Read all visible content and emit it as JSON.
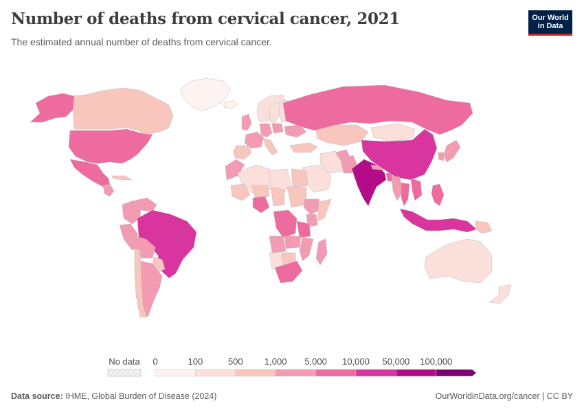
{
  "title": "Number of deaths from cervical cancer, 2021",
  "subtitle": "The estimated annual number of deaths from cervical cancer.",
  "logo": {
    "line1": "Our World",
    "line2": "in Data"
  },
  "legend": {
    "no_data_label": "No data",
    "ticks": [
      "0",
      "100",
      "500",
      "1,000",
      "5,000",
      "10,000",
      "50,000",
      "100,000"
    ],
    "bin_colors": [
      "#fdf3f1",
      "#fbdfdb",
      "#f8c6bd",
      "#f29bb2",
      "#ee6b9f",
      "#d8359e",
      "#b40b89",
      "#7a016f"
    ]
  },
  "footer": {
    "source_label": "Data source:",
    "source_text": "IHME, Global Burden of Disease (2024)",
    "link_text": "OurWorldinData.org/cancer",
    "license": "CC BY"
  },
  "colors": {
    "border": "#bdbdbd",
    "water": "#ffffff",
    "no_data": "#eeeeee"
  },
  "chart_data": {
    "type": "choropleth",
    "title": "Number of deaths from cervical cancer, 2021",
    "subtitle": "The estimated annual number of deaths from cervical cancer.",
    "bins": [
      0,
      100,
      500,
      1000,
      5000,
      10000,
      50000,
      100000
    ],
    "regions": [
      {
        "name": "Canada",
        "bin": 2
      },
      {
        "name": "Greenland",
        "bin": 0
      },
      {
        "name": "Alaska (United States)",
        "bin": 4
      },
      {
        "name": "United States",
        "bin": 4
      },
      {
        "name": "Mexico",
        "bin": 4
      },
      {
        "name": "Guatemala",
        "bin": 3
      },
      {
        "name": "Cuba",
        "bin": 2
      },
      {
        "name": "Colombia",
        "bin": 3
      },
      {
        "name": "Venezuela",
        "bin": 3
      },
      {
        "name": "Peru",
        "bin": 3
      },
      {
        "name": "Brazil",
        "bin": 5
      },
      {
        "name": "Bolivia",
        "bin": 3
      },
      {
        "name": "Paraguay",
        "bin": 2
      },
      {
        "name": "Argentina",
        "bin": 3
      },
      {
        "name": "Chile",
        "bin": 2
      },
      {
        "name": "Iceland",
        "bin": 0
      },
      {
        "name": "Norway",
        "bin": 1
      },
      {
        "name": "Sweden",
        "bin": 1
      },
      {
        "name": "Finland",
        "bin": 1
      },
      {
        "name": "United Kingdom",
        "bin": 3
      },
      {
        "name": "France",
        "bin": 3
      },
      {
        "name": "Spain",
        "bin": 2
      },
      {
        "name": "Germany",
        "bin": 3
      },
      {
        "name": "Poland",
        "bin": 3
      },
      {
        "name": "Ukraine",
        "bin": 3
      },
      {
        "name": "Italy",
        "bin": 2
      },
      {
        "name": "Russia",
        "bin": 4
      },
      {
        "name": "Kazakhstan",
        "bin": 2
      },
      {
        "name": "Turkey",
        "bin": 2
      },
      {
        "name": "Iran",
        "bin": 1
      },
      {
        "name": "Saudi Arabia",
        "bin": 1
      },
      {
        "name": "Pakistan",
        "bin": 3
      },
      {
        "name": "Afghanistan",
        "bin": 3
      },
      {
        "name": "India",
        "bin": 6
      },
      {
        "name": "Bangladesh",
        "bin": 4
      },
      {
        "name": "Nepal",
        "bin": 3
      },
      {
        "name": "Mongolia",
        "bin": 1
      },
      {
        "name": "China",
        "bin": 5
      },
      {
        "name": "Japan",
        "bin": 3
      },
      {
        "name": "South Korea",
        "bin": 3
      },
      {
        "name": "Myanmar",
        "bin": 3
      },
      {
        "name": "Thailand",
        "bin": 4
      },
      {
        "name": "Vietnam",
        "bin": 4
      },
      {
        "name": "Philippines",
        "bin": 4
      },
      {
        "name": "Indonesia",
        "bin": 5
      },
      {
        "name": "Papua New Guinea",
        "bin": 2
      },
      {
        "name": "Australia",
        "bin": 1
      },
      {
        "name": "New Zealand",
        "bin": 1
      },
      {
        "name": "Morocco",
        "bin": 3
      },
      {
        "name": "Algeria",
        "bin": 1
      },
      {
        "name": "Libya",
        "bin": 1
      },
      {
        "name": "Egypt",
        "bin": 2
      },
      {
        "name": "Mali",
        "bin": 2
      },
      {
        "name": "Niger",
        "bin": 2
      },
      {
        "name": "Chad",
        "bin": 2
      },
      {
        "name": "Sudan",
        "bin": 2
      },
      {
        "name": "Nigeria",
        "bin": 4
      },
      {
        "name": "Ethiopia",
        "bin": 3
      },
      {
        "name": "Somalia",
        "bin": 2
      },
      {
        "name": "Kenya",
        "bin": 3
      },
      {
        "name": "DR Congo",
        "bin": 4
      },
      {
        "name": "Angola",
        "bin": 3
      },
      {
        "name": "Tanzania",
        "bin": 4
      },
      {
        "name": "Mozambique",
        "bin": 3
      },
      {
        "name": "Zambia",
        "bin": 3
      },
      {
        "name": "Namibia",
        "bin": 1
      },
      {
        "name": "Botswana",
        "bin": 2
      },
      {
        "name": "South Africa",
        "bin": 4
      },
      {
        "name": "Madagascar",
        "bin": 3
      }
    ]
  }
}
